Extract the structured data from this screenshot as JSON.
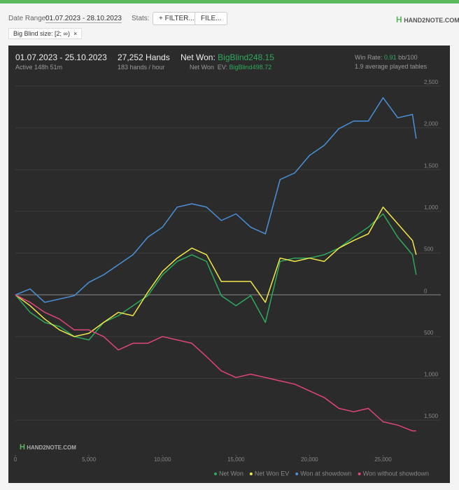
{
  "toolbar": {
    "date_range_label": "Date Range:",
    "date_range": "01.07.2023 - 28.10.2023",
    "stats_label": "Stats:",
    "filter_button": "FILTER...",
    "file_button": "FILE...",
    "logo": "HAND2NOTE.COM"
  },
  "filter_tag": "Big Blind size: [2; ∞)",
  "stats": {
    "period": "01.07.2023 - 25.10.2023",
    "active": "Active 148h 51m",
    "hands": "27,252 Hands",
    "hands_per_hour": "183 hands / hour",
    "net_won_label": "Net Won:",
    "net_won": "BigBlind248.15",
    "net_won_ev_label": "Net Won  EV:",
    "net_won_ev": "BigBlind498.72",
    "win_rate_label": "Win Rate:",
    "win_rate": "0.91",
    "win_rate_unit": "bb/100",
    "tables": "1.9 average played tables"
  },
  "watermark": "HAND2NOTE.COM",
  "chart_data": {
    "type": "line",
    "x": [
      0,
      1000,
      2000,
      3000,
      4000,
      5000,
      6000,
      7000,
      8000,
      9000,
      10000,
      11000,
      12000,
      13000,
      14000,
      15000,
      16000,
      17000,
      18000,
      19000,
      20000,
      21000,
      22000,
      23000,
      24000,
      25000,
      26000,
      27000,
      27252
    ],
    "series": [
      {
        "name": "Net Won",
        "color": "#2eaa5c",
        "values": [
          0,
          -210,
          -330,
          -380,
          -500,
          -540,
          -330,
          -250,
          -130,
          -10,
          240,
          400,
          480,
          400,
          -10,
          -130,
          -10,
          -330,
          400,
          440,
          440,
          480,
          560,
          690,
          810,
          970,
          690,
          480,
          240
        ]
      },
      {
        "name": "Net Won  EV",
        "color": "#f2e84a",
        "values": [
          0,
          -130,
          -290,
          -420,
          -500,
          -460,
          -330,
          -210,
          -250,
          30,
          280,
          440,
          560,
          480,
          160,
          160,
          160,
          -90,
          440,
          400,
          440,
          400,
          560,
          650,
          730,
          1050,
          850,
          650,
          480
        ]
      },
      {
        "name": "Won at showdown",
        "color": "#4a90d9",
        "values": [
          0,
          70,
          -90,
          -50,
          -10,
          150,
          240,
          360,
          480,
          690,
          810,
          1050,
          1090,
          1050,
          890,
          970,
          810,
          730,
          1380,
          1460,
          1670,
          1790,
          1990,
          2080,
          2080,
          2360,
          2120,
          2160,
          1870
        ]
      },
      {
        "name": "Won without showdown",
        "color": "#e0457b",
        "values": [
          0,
          -90,
          -210,
          -290,
          -420,
          -420,
          -500,
          -660,
          -580,
          -580,
          -500,
          -540,
          -580,
          -740,
          -910,
          -990,
          -950,
          -990,
          -1030,
          -1070,
          -1150,
          -1230,
          -1360,
          -1400,
          -1360,
          -1520,
          -1560,
          -1630,
          -1630
        ]
      }
    ],
    "xlim": [
      0,
      27500
    ],
    "xticks": [
      0,
      {
        "value": 5000,
        "label": "5,000"
      },
      {
        "value": 10000,
        "label": "10,000"
      },
      {
        "value": 15000,
        "label": "15,000"
      },
      {
        "value": 20000,
        "label": "20,000"
      },
      {
        "value": 25000,
        "label": "25,000"
      }
    ],
    "ylim": [
      -1700,
      2600
    ],
    "yticks": [
      {
        "value": 2500,
        "label": "2,500"
      },
      {
        "value": 2000,
        "label": "2,000"
      },
      {
        "value": 1500,
        "label": "1,500"
      },
      {
        "value": 1000,
        "label": "1,000"
      },
      500,
      0,
      {
        "value": -500,
        "label": "500"
      },
      {
        "value": -1000,
        "label": "1,000"
      },
      {
        "value": -1500,
        "label": "1,500"
      }
    ],
    "grid": true
  }
}
